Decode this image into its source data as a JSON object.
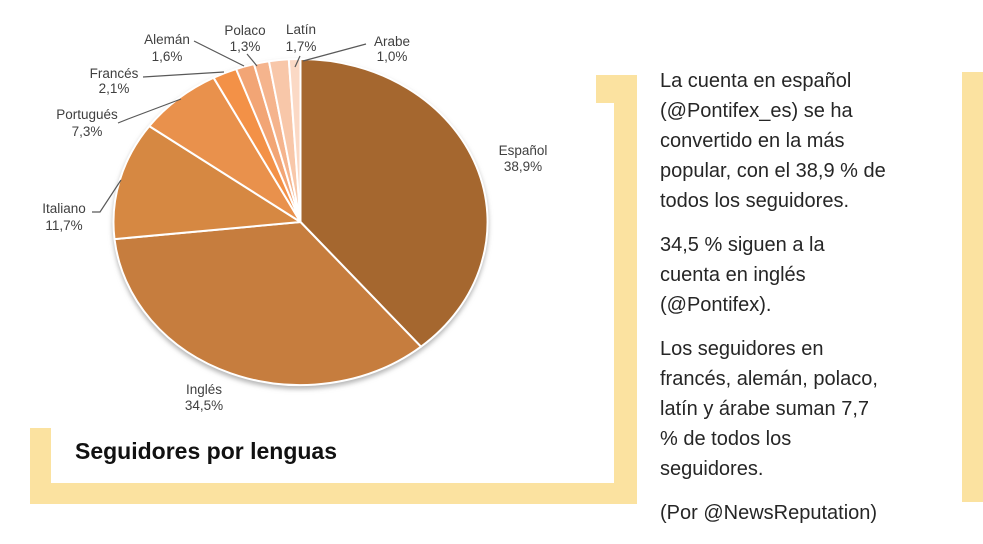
{
  "page": {
    "background": "#ffffff",
    "accent_color": "#fbe2a0"
  },
  "chart_data": {
    "type": "pie",
    "title": "Seguidores por lenguas",
    "unit": "%",
    "direction": "clockwise",
    "start_angle_deg": 0,
    "slices": [
      {
        "label": "Español",
        "pct_text": "38,9%",
        "value": 38.9,
        "color": "#a5672f"
      },
      {
        "label": "Inglés",
        "pct_text": "34,5%",
        "value": 34.5,
        "color": "#c67d3e"
      },
      {
        "label": "Italiano",
        "pct_text": "11,7%",
        "value": 11.7,
        "color": "#d68842"
      },
      {
        "label": "Portugués",
        "pct_text": "7,3%",
        "value": 7.3,
        "color": "#e9914c"
      },
      {
        "label": "Francés",
        "pct_text": "2,1%",
        "value": 2.1,
        "color": "#f39147"
      },
      {
        "label": "Alemán",
        "pct_text": "1,6%",
        "value": 1.6,
        "color": "#f2a575"
      },
      {
        "label": "Polaco",
        "pct_text": "1,3%",
        "value": 1.3,
        "color": "#f5b48d"
      },
      {
        "label": "Latín",
        "pct_text": "1,7%",
        "value": 1.7,
        "color": "#f8c7a9"
      },
      {
        "label": "Arabe",
        "pct_text": "1,0%",
        "value": 1.0,
        "color": "#fbd9c5"
      }
    ]
  },
  "commentary": {
    "paragraphs": [
      "La cuenta en español\n(@Pontifex_es)  se ha\nconvertido en la más\npopular, con el 38,9 % de\ntodos los seguidores.",
      "34,5 % siguen a la\ncuenta en inglés\n(@Pontifex).",
      "Los seguidores en\nfrancés, alemán, polaco,\nlatín y árabe suman 7,7\n% de todos los\nseguidores.",
      "(Por @NewsReputation)"
    ]
  }
}
